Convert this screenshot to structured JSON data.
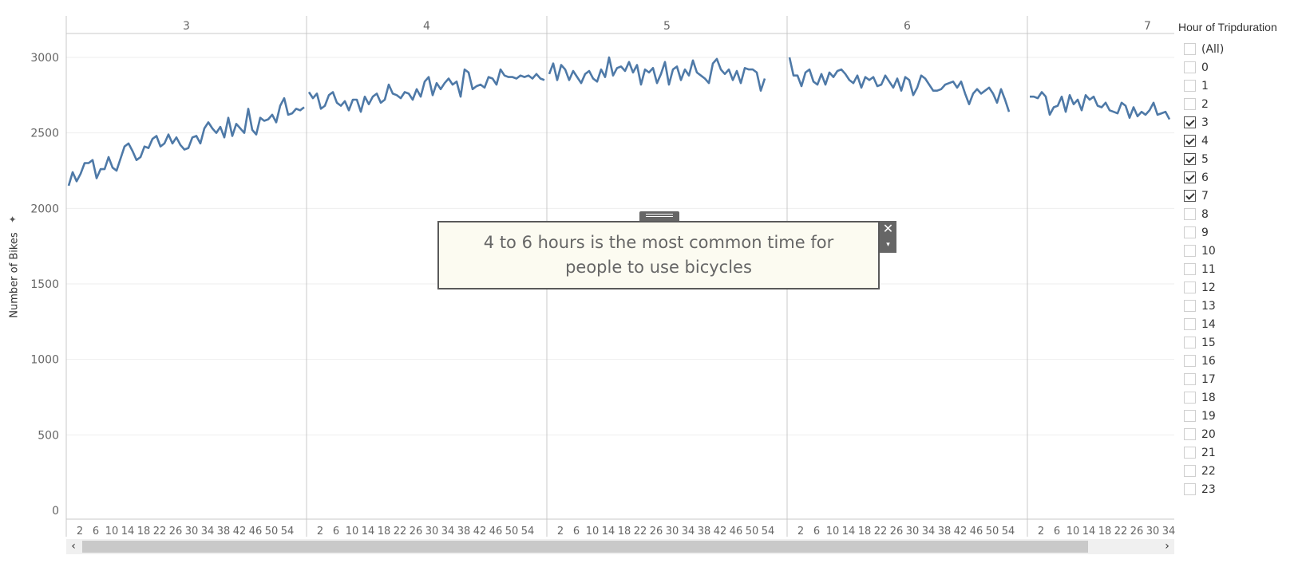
{
  "legend": {
    "title": "Hour of Tripduration",
    "items": [
      {
        "label": "(All)",
        "checked": false
      },
      {
        "label": "0",
        "checked": false
      },
      {
        "label": "1",
        "checked": false
      },
      {
        "label": "2",
        "checked": false
      },
      {
        "label": "3",
        "checked": true
      },
      {
        "label": "4",
        "checked": true
      },
      {
        "label": "5",
        "checked": true
      },
      {
        "label": "6",
        "checked": true
      },
      {
        "label": "7",
        "checked": true
      },
      {
        "label": "8",
        "checked": false
      },
      {
        "label": "9",
        "checked": false
      },
      {
        "label": "10",
        "checked": false
      },
      {
        "label": "11",
        "checked": false
      },
      {
        "label": "12",
        "checked": false
      },
      {
        "label": "13",
        "checked": false
      },
      {
        "label": "14",
        "checked": false
      },
      {
        "label": "15",
        "checked": false
      },
      {
        "label": "16",
        "checked": false
      },
      {
        "label": "17",
        "checked": false
      },
      {
        "label": "18",
        "checked": false
      },
      {
        "label": "19",
        "checked": false
      },
      {
        "label": "20",
        "checked": false
      },
      {
        "label": "21",
        "checked": false
      },
      {
        "label": "22",
        "checked": false
      },
      {
        "label": "23",
        "checked": false
      }
    ]
  },
  "annotation": {
    "text": "4 to 6 hours is the most common time for people to use bicycles",
    "close_glyph": "✕",
    "menu_glyph": "▾"
  },
  "scrollbar": {
    "left_glyph": "‹",
    "right_glyph": "›"
  },
  "colors": {
    "line": "#4e79a7",
    "grid": "#eeeeee",
    "divider": "#c8c8c8"
  },
  "chart_data": {
    "type": "line",
    "ylabel": "Number of Bikes",
    "ylim": [
      0,
      3150
    ],
    "yticks": [
      0,
      500,
      1000,
      1500,
      2000,
      2500,
      3000
    ],
    "panel_tick_labels": [
      "2",
      "6",
      "10",
      "14",
      "18",
      "22",
      "26",
      "30",
      "34",
      "38",
      "42",
      "46",
      "50",
      "54"
    ],
    "panels": [
      {
        "label": "3",
        "x_start": 1,
        "values": [
          2150,
          2240,
          2180,
          2230,
          2300,
          2300,
          2320,
          2200,
          2260,
          2260,
          2340,
          2270,
          2250,
          2330,
          2410,
          2430,
          2380,
          2320,
          2340,
          2410,
          2400,
          2460,
          2480,
          2410,
          2430,
          2490,
          2430,
          2470,
          2420,
          2390,
          2400,
          2470,
          2480,
          2430,
          2530,
          2570,
          2530,
          2500,
          2540,
          2470,
          2600,
          2480,
          2560,
          2530,
          2500,
          2660,
          2520,
          2490,
          2600,
          2580,
          2590,
          2620,
          2570,
          2680,
          2730,
          2620,
          2630,
          2660,
          2650,
          2670
        ]
      },
      {
        "label": "4",
        "x_start": 1,
        "values": [
          2770,
          2730,
          2760,
          2660,
          2680,
          2750,
          2770,
          2700,
          2680,
          2710,
          2650,
          2720,
          2720,
          2640,
          2740,
          2690,
          2740,
          2760,
          2700,
          2720,
          2820,
          2760,
          2750,
          2730,
          2770,
          2760,
          2720,
          2790,
          2740,
          2840,
          2870,
          2750,
          2830,
          2790,
          2830,
          2860,
          2820,
          2840,
          2740,
          2920,
          2900,
          2790,
          2810,
          2820,
          2800,
          2870,
          2860,
          2820,
          2920,
          2880,
          2870,
          2870,
          2860,
          2880,
          2870,
          2880,
          2860,
          2890,
          2860,
          2850
        ]
      },
      {
        "label": "5",
        "x_start": 1,
        "values": [
          2890,
          2960,
          2850,
          2950,
          2920,
          2850,
          2910,
          2870,
          2830,
          2890,
          2910,
          2860,
          2840,
          2920,
          2870,
          3000,
          2880,
          2930,
          2940,
          2910,
          2970,
          2900,
          2950,
          2820,
          2920,
          2900,
          2930,
          2830,
          2890,
          2970,
          2820,
          2920,
          2940,
          2850,
          2920,
          2880,
          2980,
          2900,
          2880,
          2860,
          2830,
          2960,
          2990,
          2920,
          2890,
          2920,
          2850,
          2910,
          2830,
          2930,
          2920,
          2920,
          2900,
          2780,
          2860
        ]
      },
      {
        "label": "6",
        "x_start": 1,
        "values": [
          3000,
          2880,
          2880,
          2810,
          2900,
          2920,
          2840,
          2820,
          2890,
          2820,
          2900,
          2870,
          2910,
          2920,
          2890,
          2850,
          2830,
          2880,
          2800,
          2870,
          2850,
          2870,
          2810,
          2820,
          2880,
          2840,
          2800,
          2860,
          2780,
          2870,
          2850,
          2750,
          2800,
          2880,
          2860,
          2820,
          2780,
          2780,
          2790,
          2820,
          2830,
          2840,
          2800,
          2840,
          2760,
          2690,
          2760,
          2790,
          2760,
          2780,
          2800,
          2760,
          2700,
          2790,
          2720,
          2640
        ]
      },
      {
        "label": "7",
        "x_start": 1,
        "values": [
          2740,
          2740,
          2730,
          2770,
          2740,
          2620,
          2670,
          2680,
          2740,
          2640,
          2750,
          2690,
          2720,
          2650,
          2750,
          2720,
          2740,
          2680,
          2670,
          2700,
          2650,
          2640,
          2630,
          2700,
          2680,
          2600,
          2670,
          2610,
          2640,
          2620,
          2650,
          2700,
          2620,
          2630,
          2640,
          2590
        ]
      }
    ]
  }
}
